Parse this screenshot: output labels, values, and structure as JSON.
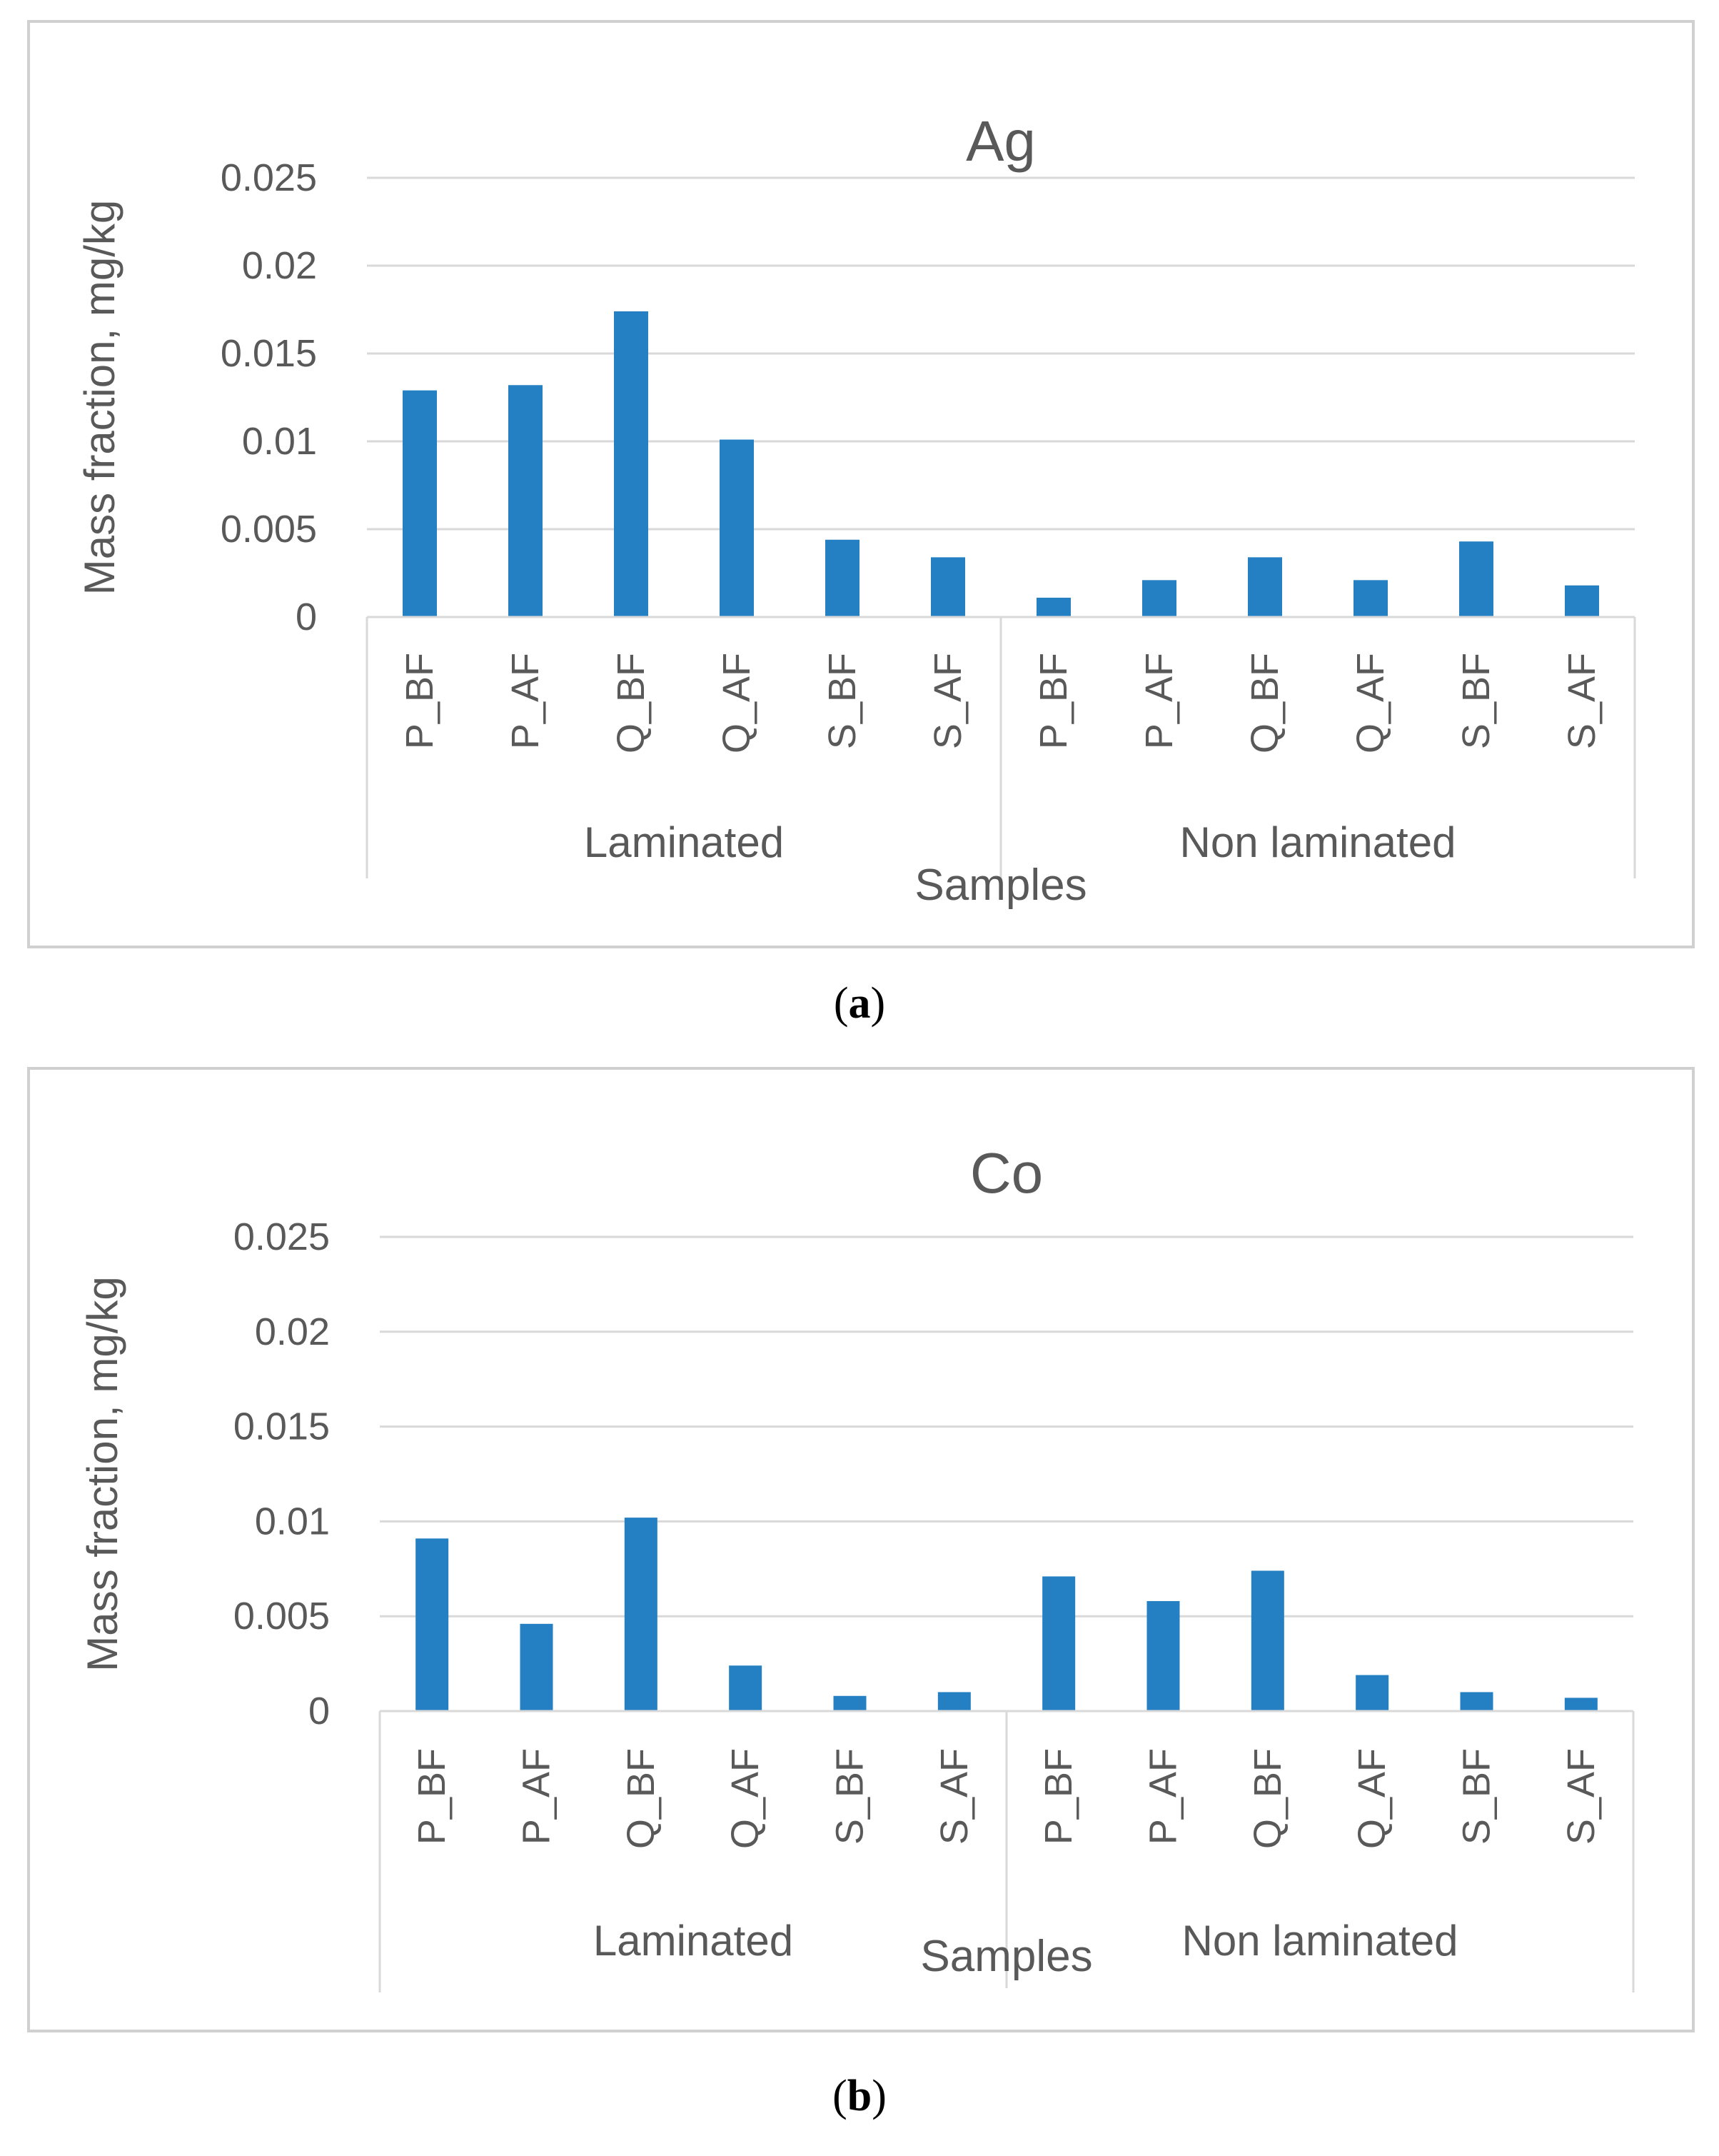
{
  "figure": {
    "caption_a": "a",
    "caption_b": "b"
  },
  "chart_data": [
    {
      "type": "bar",
      "title": "Ag",
      "xlabel": "Samples",
      "ylabel": "Mass fraction, mg/kg",
      "ylim": [
        0,
        0.025
      ],
      "yticks": [
        0,
        0.005,
        0.01,
        0.015,
        0.02,
        0.025
      ],
      "ytick_labels": [
        "0",
        "0.005",
        "0.01",
        "0.015",
        "0.02",
        "0.025"
      ],
      "groups": [
        {
          "name": "Laminated",
          "categories": [
            "P_BF",
            "P_AF",
            "Q_BF",
            "Q_AF",
            "S_BF",
            "S_AF"
          ]
        },
        {
          "name": "Non laminated",
          "categories": [
            "P_BF",
            "P_AF",
            "Q_BF",
            "Q_AF",
            "S_BF",
            "S_AF"
          ]
        }
      ],
      "values": [
        0.0129,
        0.0132,
        0.0174,
        0.0101,
        0.0044,
        0.0034,
        0.0011,
        0.0021,
        0.0034,
        0.0021,
        0.0043,
        0.0018
      ],
      "grid": true,
      "bar_color": "#2580c3"
    },
    {
      "type": "bar",
      "title": "Co",
      "xlabel": "Samples",
      "ylabel": "Mass fraction, mg/kg",
      "ylim": [
        0,
        0.025
      ],
      "yticks": [
        0,
        0.005,
        0.01,
        0.015,
        0.02,
        0.025
      ],
      "ytick_labels": [
        "0",
        "0.005",
        "0.01",
        "0.015",
        "0.02",
        "0.025"
      ],
      "groups": [
        {
          "name": "Laminated",
          "categories": [
            "P_BF",
            "P_AF",
            "Q_BF",
            "Q_AF",
            "S_BF",
            "S_AF"
          ]
        },
        {
          "name": "Non laminated",
          "categories": [
            "P_BF",
            "P_AF",
            "Q_BF",
            "Q_AF",
            "S_BF",
            "S_AF"
          ]
        }
      ],
      "values": [
        0.0091,
        0.0046,
        0.0102,
        0.0024,
        0.0008,
        0.001,
        0.0071,
        0.0058,
        0.0074,
        0.0019,
        0.001,
        0.0007
      ],
      "grid": true,
      "bar_color": "#2580c3"
    }
  ]
}
